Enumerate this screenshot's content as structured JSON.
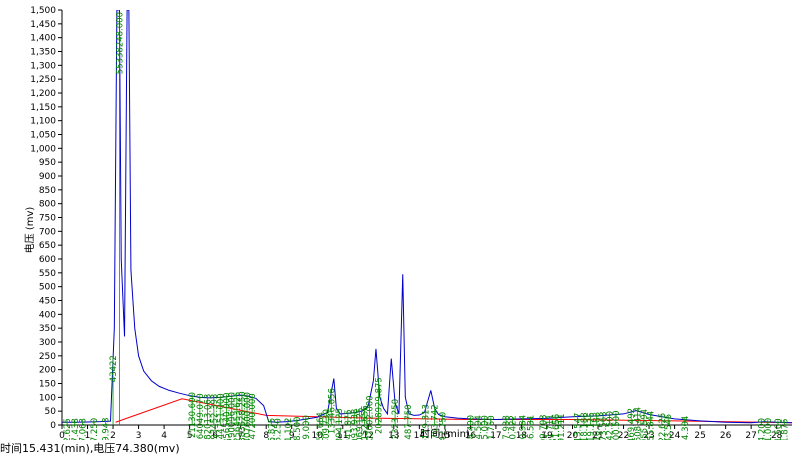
{
  "status_bar": {
    "text": "时间15.431(min),电压74.380(mv)"
  },
  "chart_data": {
    "type": "line",
    "xlabel": "时间 (min)",
    "ylabel": "电压 (mv)",
    "xlim": [
      0,
      28.6
    ],
    "ylim": [
      0,
      1500
    ],
    "x_ticks": [
      0,
      1,
      2,
      3,
      4,
      5,
      6,
      7,
      8,
      9,
      10,
      11,
      12,
      13,
      14,
      15,
      16,
      17,
      18,
      19,
      20,
      21,
      22,
      23,
      24,
      25,
      26,
      27,
      28
    ],
    "y_ticks": [
      0,
      50,
      100,
      150,
      200,
      250,
      300,
      350,
      400,
      450,
      500,
      550,
      600,
      650,
      700,
      750,
      800,
      850,
      900,
      950,
      1000,
      1050,
      1100,
      1150,
      1200,
      1250,
      1300,
      1350,
      1400,
      1450,
      1500
    ],
    "series": [
      {
        "color": "#0000cc",
        "x": [
          0,
          0.5,
          1,
          1.5,
          1.9,
          2.05,
          2.15,
          2.25,
          2.32,
          2.45,
          2.55,
          2.62,
          2.7,
          2.85,
          3.0,
          3.2,
          3.5,
          3.8,
          4.2,
          4.6,
          5.0,
          5.4,
          5.8,
          6.2,
          6.6,
          7.0,
          7.3,
          7.6,
          7.9,
          8.1,
          8.4,
          8.8,
          9.2,
          9.6,
          10.0,
          10.4,
          10.65,
          10.75,
          10.9,
          11.2,
          11.5,
          11.8,
          12.0,
          12.2,
          12.3,
          12.45,
          12.6,
          12.75,
          12.9,
          13.05,
          13.2,
          13.35,
          13.45,
          13.6,
          13.8,
          14.0,
          14.2,
          14.45,
          14.6,
          14.75,
          15.0,
          15.5,
          16.0,
          17.0,
          18.0,
          19.0,
          20.0,
          21.0,
          22.0,
          22.5,
          23.0,
          24.0,
          25.0,
          26.0,
          27.0,
          27.5,
          28.0,
          28.6
        ],
        "y": [
          10,
          10,
          11,
          12,
          14,
          350,
          1500,
          1500,
          600,
          320,
          1500,
          1500,
          560,
          350,
          250,
          195,
          160,
          140,
          125,
          115,
          106,
          100,
          98,
          100,
          104,
          108,
          104,
          96,
          70,
          12,
          10,
          12,
          16,
          22,
          28,
          45,
          168,
          60,
          40,
          42,
          45,
          52,
          70,
          160,
          275,
          100,
          60,
          40,
          240,
          80,
          40,
          545,
          100,
          40,
          35,
          36,
          45,
          125,
          60,
          38,
          30,
          25,
          22,
          20,
          22,
          24,
          30,
          33,
          40,
          52,
          38,
          22,
          15,
          10,
          8,
          12,
          10,
          8
        ]
      }
    ],
    "baseline": {
      "color": "#ff0000",
      "x": [
        2.1,
        4.7,
        8.0,
        12.0,
        16.0,
        20.0,
        24.0,
        28.6
      ],
      "y": [
        10,
        95,
        35,
        25,
        20,
        20,
        15,
        8
      ]
    },
    "peak_labels": [
      {
        "x": 0.2,
        "text": "48342.625"
      },
      {
        "x": 0.5,
        "text": "59277.438"
      },
      {
        "x": 0.8,
        "text": "33837.063"
      },
      {
        "x": 1.25,
        "text": "19077.250"
      },
      {
        "x": 1.7,
        "text": "13709.943"
      },
      {
        "x": 2.0,
        "text": "43422"
      },
      {
        "x": 2.25,
        "text": "55338248.000"
      },
      {
        "x": 5.1,
        "text": "21130.600"
      },
      {
        "x": 5.4,
        "text": "64049.070"
      },
      {
        "x": 5.7,
        "text": "182013.063"
      },
      {
        "x": 5.95,
        "text": "193452.393"
      },
      {
        "x": 6.2,
        "text": "144751.000"
      },
      {
        "x": 6.45,
        "text": "356540.000"
      },
      {
        "x": 6.65,
        "text": "290096.000"
      },
      {
        "x": 6.85,
        "text": "256453.625"
      },
      {
        "x": 7.05,
        "text": "383628.250"
      },
      {
        "x": 7.25,
        "text": "407600.000"
      },
      {
        "x": 7.45,
        "text": "1447200.000"
      },
      {
        "x": 8.2,
        "text": "13835.875"
      },
      {
        "x": 8.45,
        "text": "5456.250"
      },
      {
        "x": 8.85,
        "text": "35761.102"
      },
      {
        "x": 9.2,
        "text": "23368.500"
      },
      {
        "x": 9.55,
        "text": "6599.000"
      },
      {
        "x": 10.1,
        "text": "24469.664"
      },
      {
        "x": 10.35,
        "text": "19409.730"
      },
      {
        "x": 10.55,
        "text": "13346.656"
      },
      {
        "x": 10.85,
        "text": "1059394.125"
      },
      {
        "x": 11.2,
        "text": "55941.875"
      },
      {
        "x": 11.45,
        "text": "106993.938"
      },
      {
        "x": 11.65,
        "text": "91069.125"
      },
      {
        "x": 11.85,
        "text": "47152.656"
      },
      {
        "x": 12.05,
        "text": "102002.000"
      },
      {
        "x": 12.4,
        "text": "2028929.875"
      },
      {
        "x": 13.05,
        "text": "3012323.250"
      },
      {
        "x": 13.55,
        "text": "2637487.750"
      },
      {
        "x": 14.25,
        "text": "40119.313"
      },
      {
        "x": 14.6,
        "text": "19703.742"
      },
      {
        "x": 14.9,
        "text": "1287442.750"
      },
      {
        "x": 16.0,
        "text": "358.400"
      },
      {
        "x": 16.3,
        "text": "9594.594"
      },
      {
        "x": 16.55,
        "text": "8525.000"
      },
      {
        "x": 16.8,
        "text": "4901.750"
      },
      {
        "x": 17.4,
        "text": "38677.938"
      },
      {
        "x": 17.65,
        "text": "6800.422"
      },
      {
        "x": 18.05,
        "text": "14890.984"
      },
      {
        "x": 18.35,
        "text": "20436.531"
      },
      {
        "x": 18.85,
        "text": "31209.703"
      },
      {
        "x": 19.1,
        "text": "13651.711"
      },
      {
        "x": 19.35,
        "text": "25021.656"
      },
      {
        "x": 19.55,
        "text": "5091.211"
      },
      {
        "x": 20.2,
        "text": "180413.547"
      },
      {
        "x": 20.45,
        "text": "46818.188"
      },
      {
        "x": 20.7,
        "text": "19619.125"
      },
      {
        "x": 20.95,
        "text": "56416.188"
      },
      {
        "x": 21.2,
        "text": "52773.563"
      },
      {
        "x": 21.45,
        "text": "11742.500"
      },
      {
        "x": 21.7,
        "text": "39100.500"
      },
      {
        "x": 22.3,
        "text": "85469.492"
      },
      {
        "x": 22.55,
        "text": "10508.414"
      },
      {
        "x": 22.8,
        "text": "27955.594"
      },
      {
        "x": 23.05,
        "text": "47055.844"
      },
      {
        "x": 23.5,
        "text": "155422.625"
      },
      {
        "x": 23.75,
        "text": "23383.545"
      },
      {
        "x": 24.4,
        "text": "9534.304"
      },
      {
        "x": 27.4,
        "text": "1394.200"
      },
      {
        "x": 27.65,
        "text": "35171.000"
      },
      {
        "x": 28.05,
        "text": "10461.500"
      },
      {
        "x": 28.3,
        "text": "8261.875"
      }
    ]
  }
}
